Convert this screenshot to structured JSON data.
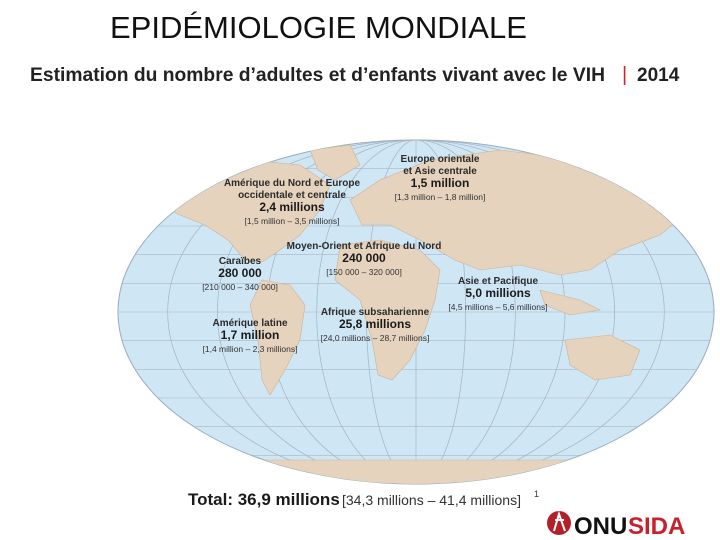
{
  "header": {
    "title": "EPIDÉMIOLOGIE MONDIALE",
    "subtitle": "Estimation du nombre d’adultes et d’enfants vivant avec le VIH",
    "separator": "|",
    "year": "2014"
  },
  "regions": [
    {
      "name_lines": [
        "Europe orientale",
        "et Asie centrale"
      ],
      "value": "1,5 million",
      "range": "[1,3 million – 1,8 million]"
    },
    {
      "name_lines": [
        "Amérique du Nord et Europe",
        "occidentale et centrale"
      ],
      "value": "2,4 millions",
      "range": "[1,5 million – 3,5 millions]"
    },
    {
      "name_lines": [
        "Moyen-Orient et Afrique du Nord"
      ],
      "value": "240 000",
      "range": "[150 000 – 320 000]"
    },
    {
      "name_lines": [
        "Caraïbes"
      ],
      "value": "280 000",
      "range": "[210 000 – 340 000]"
    },
    {
      "name_lines": [
        "Asie et Pacifique"
      ],
      "value": "5,0 millions",
      "range": "[4,5 millions – 5,6 millions]"
    },
    {
      "name_lines": [
        "Afrique subsaharienne"
      ],
      "value": "25,8 millions",
      "range": "[24,0 millions – 28,7 millions]"
    },
    {
      "name_lines": [
        "Amérique latine"
      ],
      "value": "1,7 million",
      "range": "[1,4 million – 2,3 millions]"
    }
  ],
  "total": {
    "label": "Total: 36,9 millions",
    "range": "[34,3 millions – 41,4 millions]",
    "footnote": "1"
  },
  "logo": {
    "part1": "ONU",
    "part2": "SIDA"
  }
}
